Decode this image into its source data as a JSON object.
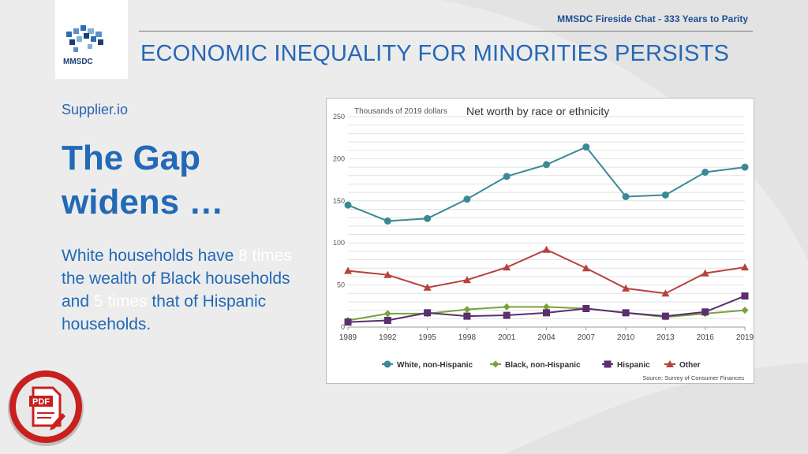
{
  "header": {
    "subtitle": "MMSDC Fireside Chat - 333 Years to Parity",
    "title": "ECONOMIC INEQUALITY FOR MINORITIES PERSISTS",
    "logo_text": "MMSDC"
  },
  "left": {
    "brand": "Supplier.io",
    "headline_line1": "The Gap",
    "headline_line2": "widens …",
    "body_1": "White households have ",
    "body_hl_1": "8 times",
    "body_2": " the wealth of Black households and ",
    "body_hl_2": "5 times",
    "body_3": " that of Hispanic households."
  },
  "pdf_badge": {
    "label": "PDF"
  },
  "colors": {
    "accent": "#2269b6",
    "white_series": "#3a8a95",
    "black_series": "#7aa23a",
    "hispanic_series": "#5b2e6d",
    "other_series": "#b8423c"
  },
  "chart_data": {
    "type": "line",
    "title": "Net worth by race or ethnicity",
    "units_label": "Thousands of 2019 dollars",
    "source": "Source: Survey of Consumer Finances",
    "categories": [
      "1989",
      "1992",
      "1995",
      "1998",
      "2001",
      "2004",
      "2007",
      "2010",
      "2013",
      "2016",
      "2019"
    ],
    "ylim": [
      0,
      250
    ],
    "yticks": [
      0,
      50,
      100,
      150,
      200,
      250
    ],
    "legend_position": "bottom",
    "series": [
      {
        "name": "White, non-Hispanic",
        "marker": "circle",
        "values": [
          145,
          126,
          129,
          152,
          179,
          193,
          214,
          155,
          157,
          184,
          190
        ]
      },
      {
        "name": "Black, non-Hispanic",
        "marker": "diamond",
        "values": [
          8,
          16,
          16,
          21,
          24,
          24,
          22,
          17,
          12,
          16,
          20
        ]
      },
      {
        "name": "Hispanic",
        "marker": "square",
        "values": [
          6,
          8,
          17,
          13,
          14,
          17,
          22,
          17,
          13,
          18,
          37
        ]
      },
      {
        "name": "Other",
        "marker": "triangle",
        "values": [
          67,
          62,
          47,
          56,
          71,
          92,
          70,
          46,
          40,
          64,
          71
        ]
      }
    ]
  }
}
